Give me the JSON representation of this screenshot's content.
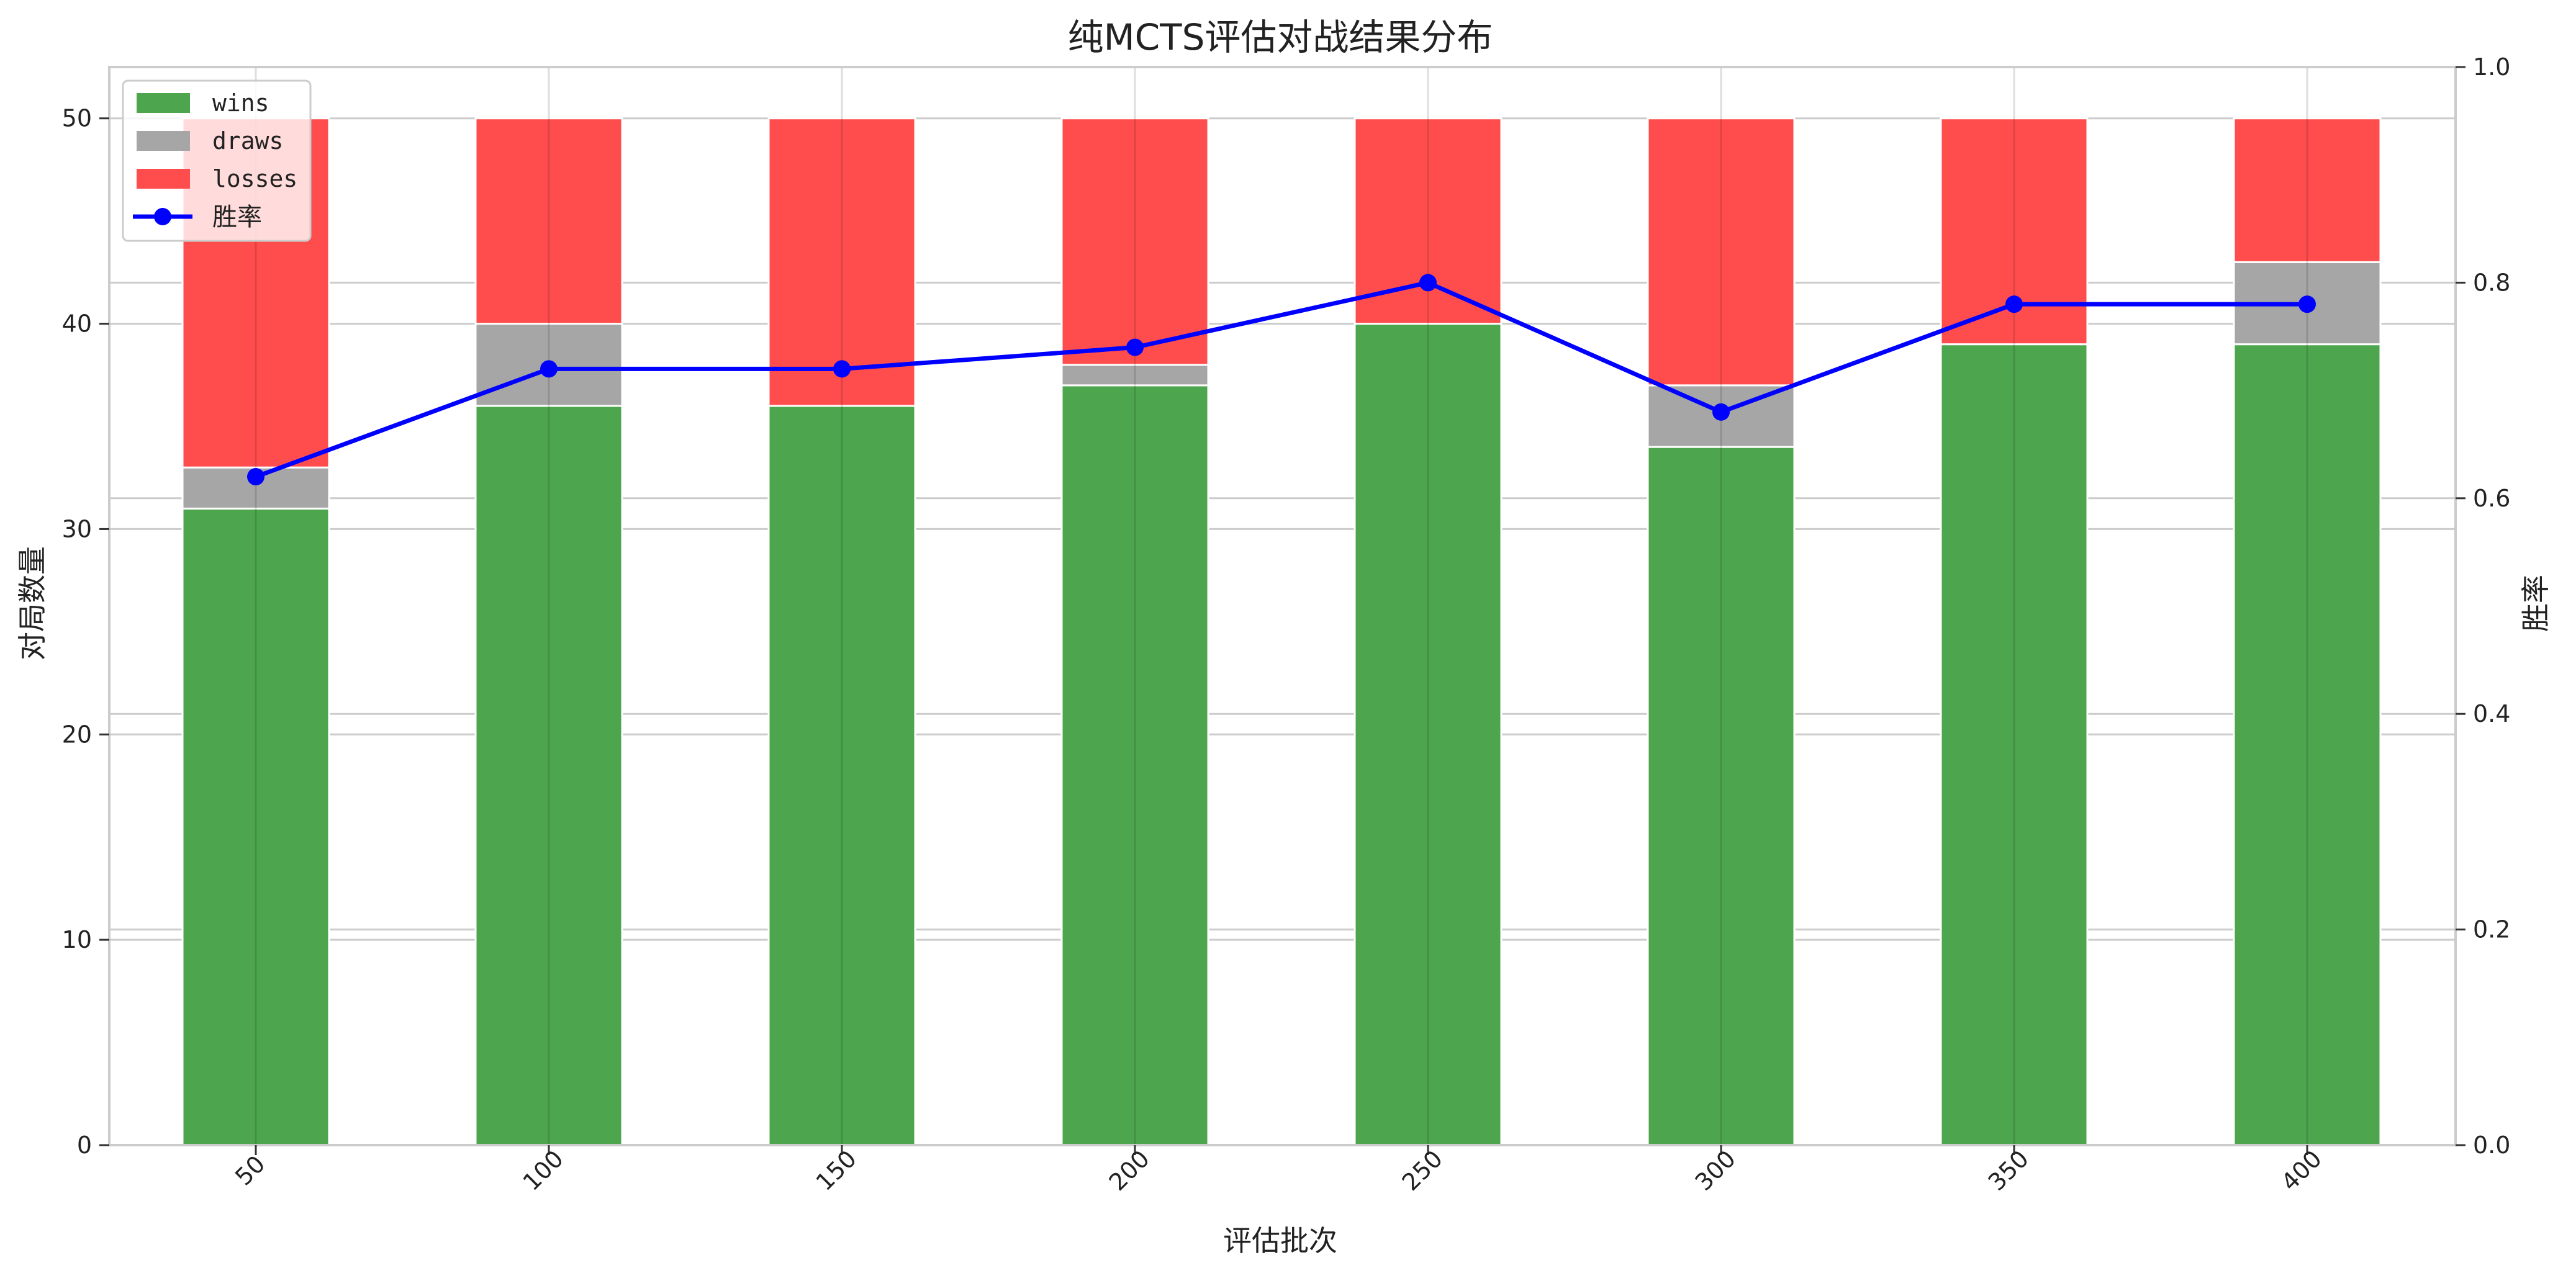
{
  "chart_data": {
    "type": "bar",
    "stacked": true,
    "title": "纯MCTS评估对战结果分布",
    "xlabel": "评估批次",
    "ylabel": "对局数量",
    "ylabel_right": "胜率",
    "categories": [
      "50",
      "100",
      "150",
      "200",
      "250",
      "300",
      "350",
      "400"
    ],
    "ylim": [
      0,
      52.5
    ],
    "ylim_right": [
      0,
      1.0
    ],
    "yticks": [
      0,
      10,
      20,
      30,
      40,
      50
    ],
    "yticks_right": [
      0.0,
      0.2,
      0.4,
      0.6,
      0.8,
      1.0
    ],
    "ytick_labels_right": [
      "0.0",
      "0.2",
      "0.4",
      "0.6",
      "0.8",
      "1.0"
    ],
    "grid": true,
    "legend_position": "top-left",
    "series": [
      {
        "name": "wins",
        "kind": "bar",
        "color": "#4da64d",
        "values": [
          31,
          36,
          36,
          37,
          40,
          34,
          39,
          39
        ]
      },
      {
        "name": "draws",
        "kind": "bar",
        "color": "#a6a6a6",
        "values": [
          2,
          4,
          0,
          1,
          0,
          3,
          0,
          4
        ]
      },
      {
        "name": "losses",
        "kind": "bar",
        "color": "#ff4d4d",
        "values": [
          17,
          10,
          14,
          12,
          10,
          13,
          11,
          7
        ]
      },
      {
        "name": "胜率",
        "kind": "line",
        "axis": "right",
        "color": "#0000ff",
        "values": [
          0.62,
          0.72,
          0.72,
          0.74,
          0.8,
          0.68,
          0.78,
          0.78
        ]
      }
    ]
  }
}
